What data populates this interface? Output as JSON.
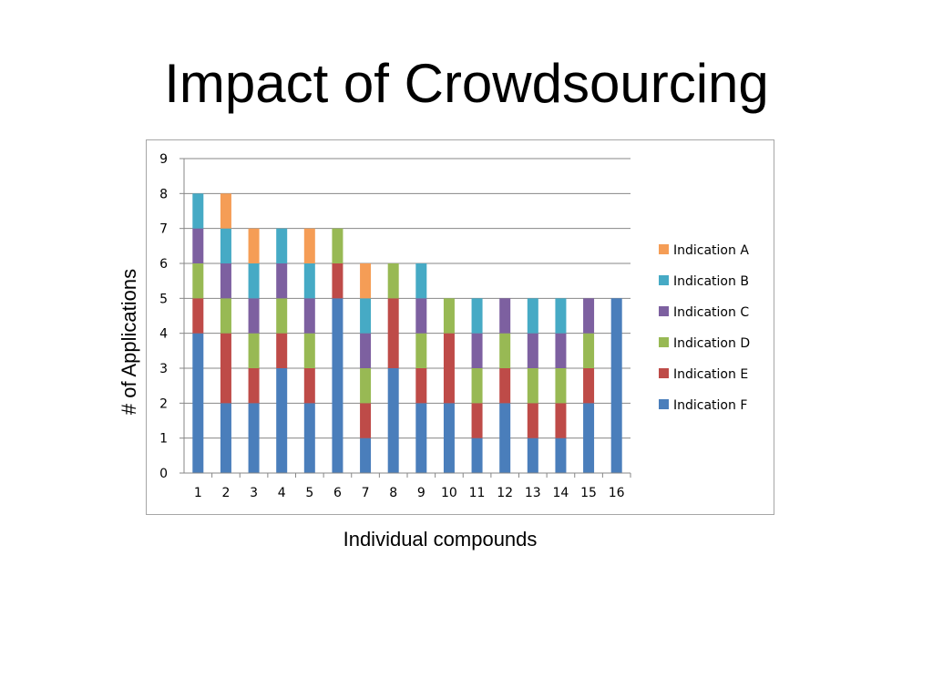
{
  "slide": {
    "title": "Impact of Crowdsourcing"
  },
  "chart_data": {
    "type": "bar",
    "stacked": true,
    "categories": [
      "1",
      "2",
      "3",
      "4",
      "5",
      "6",
      "7",
      "8",
      "9",
      "10",
      "11",
      "12",
      "13",
      "14",
      "15",
      "16"
    ],
    "series": [
      {
        "name": "Indication F",
        "color": "#4a7ebb",
        "values": [
          4,
          2,
          2,
          3,
          2,
          5,
          1,
          3,
          2,
          2,
          1,
          2,
          1,
          1,
          2,
          5
        ]
      },
      {
        "name": "Indication E",
        "color": "#be4b48",
        "values": [
          1,
          2,
          1,
          1,
          1,
          1,
          1,
          2,
          1,
          2,
          1,
          1,
          1,
          1,
          1,
          0
        ]
      },
      {
        "name": "Indication D",
        "color": "#98b954",
        "values": [
          1,
          1,
          1,
          1,
          1,
          1,
          1,
          1,
          1,
          1,
          1,
          1,
          1,
          1,
          1,
          0
        ]
      },
      {
        "name": "Indication C",
        "color": "#7d60a0",
        "values": [
          1,
          1,
          1,
          1,
          1,
          0,
          1,
          0,
          1,
          0,
          1,
          1,
          1,
          1,
          1,
          0
        ]
      },
      {
        "name": "Indication B",
        "color": "#46aac5",
        "values": [
          1,
          1,
          1,
          1,
          1,
          0,
          1,
          0,
          1,
          0,
          1,
          0,
          1,
          1,
          0,
          0
        ]
      },
      {
        "name": "Indication A",
        "color": "#f59d56",
        "values": [
          0,
          1,
          1,
          0,
          1,
          0,
          1,
          0,
          0,
          0,
          0,
          0,
          0,
          0,
          0,
          0
        ]
      }
    ],
    "legend_order": [
      "Indication A",
      "Indication B",
      "Indication C",
      "Indication D",
      "Indication E",
      "Indication F"
    ],
    "legend_position": "right",
    "ylim": [
      0,
      9
    ],
    "yticks": [
      "0",
      "1",
      "2",
      "3",
      "4",
      "5",
      "6",
      "7",
      "8",
      "9"
    ],
    "grid": true,
    "xlabel": "Individual compounds",
    "ylabel": "# of Applications"
  }
}
